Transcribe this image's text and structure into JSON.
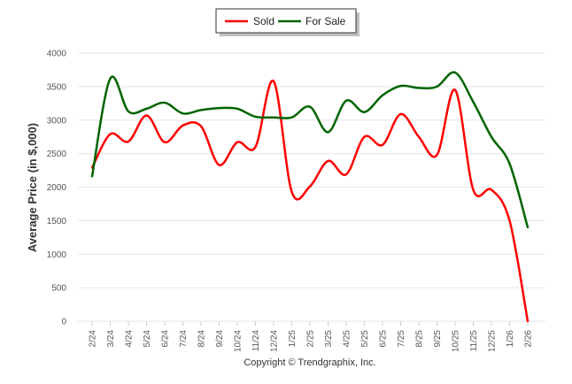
{
  "chart_data": {
    "type": "line",
    "title": "",
    "xlabel": "",
    "ylabel": "Average Price (in $,000)",
    "ylim": [
      0,
      4000
    ],
    "yticks": [
      0,
      500,
      1000,
      1500,
      2000,
      2500,
      3000,
      3500,
      4000
    ],
    "grid": true,
    "legend_placement": "top-center",
    "categories": [
      "2/24",
      "3/24",
      "4/24",
      "5/24",
      "6/24",
      "7/24",
      "8/24",
      "9/24",
      "10/24",
      "11/24",
      "12/24",
      "1/25",
      "2/25",
      "3/25",
      "4/25",
      "5/25",
      "6/25",
      "7/25",
      "8/25",
      "9/25",
      "10/25",
      "11/25",
      "12/25",
      "1/26",
      "2/26"
    ],
    "series": [
      {
        "name": "Sold",
        "color": "#ff0000",
        "values": [
          2290,
          2790,
          2680,
          3070,
          2670,
          2920,
          2910,
          2330,
          2670,
          2600,
          3580,
          1930,
          2010,
          2390,
          2190,
          2750,
          2630,
          3090,
          2750,
          2480,
          3450,
          1960,
          1960,
          1500,
          0
        ]
      },
      {
        "name": "For Sale",
        "color": "#006400",
        "values": [
          2160,
          3620,
          3130,
          3170,
          3260,
          3100,
          3150,
          3180,
          3170,
          3050,
          3040,
          3040,
          3200,
          2820,
          3290,
          3120,
          3370,
          3510,
          3480,
          3500,
          3710,
          3270,
          2750,
          2350,
          1400
        ]
      }
    ],
    "footer": "Copyright © Trendgraphix, Inc."
  }
}
